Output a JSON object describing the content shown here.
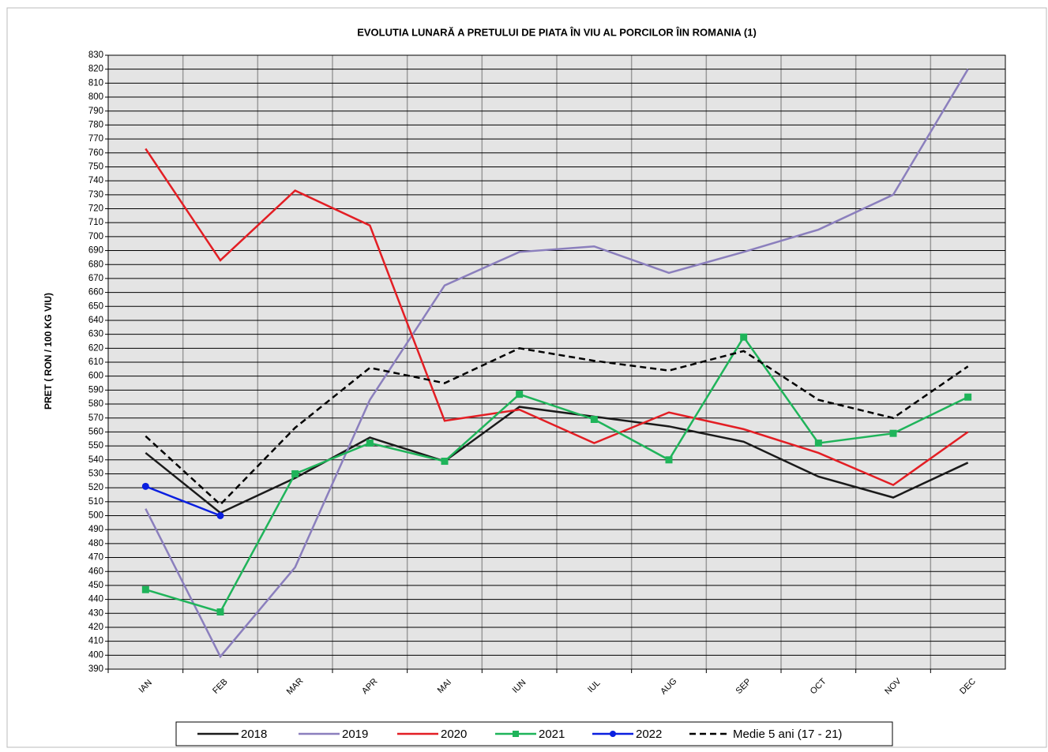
{
  "chart_data": {
    "type": "line",
    "title": "EVOLUTIA LUNARĂ A PRETULUI  DE PIATA ÎN VIU AL PORCILOR ÎIN ROMANIA (1)",
    "y_label": "PRET ( RON / 100 KG VIU)",
    "categories": [
      "IAN",
      "FEB",
      "MAR",
      "APR",
      "MAI",
      "IUN",
      "IUL",
      "AUG",
      "SEP",
      "OCT",
      "NOV",
      "DEC"
    ],
    "series": [
      {
        "name": "2018",
        "color": "#1a1a1a",
        "values": [
          545,
          502,
          527,
          556,
          539,
          578,
          571,
          564,
          553,
          528,
          513,
          538
        ]
      },
      {
        "name": "2019",
        "color": "#8b7fbd",
        "values": [
          505,
          399,
          463,
          583,
          665,
          689,
          693,
          674,
          689,
          705,
          730,
          820
        ]
      },
      {
        "name": "2020",
        "color": "#e31e24",
        "values": [
          763,
          683,
          733,
          708,
          568,
          576,
          552,
          574,
          562,
          545,
          522,
          560
        ]
      },
      {
        "name": "2021",
        "color": "#1fb45a",
        "marker": "square",
        "values": [
          447,
          431,
          530,
          552,
          539,
          587,
          569,
          540,
          628,
          552,
          559,
          585
        ]
      },
      {
        "name": "2022",
        "color": "#0a1fe0",
        "marker": "circle",
        "values": [
          521,
          500,
          null,
          null,
          null,
          null,
          null,
          null,
          null,
          null,
          null,
          null
        ]
      },
      {
        "name": "Medie 5 ani (17 - 21)",
        "color": "#000000",
        "dash": "dashed",
        "values": [
          557,
          508,
          563,
          606,
          595,
          620,
          611,
          604,
          618,
          583,
          570,
          607
        ]
      }
    ],
    "ylim": [
      390,
      830
    ],
    "yticks": [
      390,
      400,
      410,
      420,
      430,
      440,
      450,
      460,
      470,
      480,
      490,
      500,
      510,
      520,
      530,
      540,
      550,
      560,
      570,
      580,
      590,
      600,
      610,
      620,
      630,
      640,
      650,
      660,
      670,
      680,
      690,
      700,
      710,
      720,
      730,
      740,
      750,
      760,
      770,
      780,
      790,
      800,
      810,
      820,
      830
    ],
    "grid": true,
    "legend": "bottom"
  }
}
